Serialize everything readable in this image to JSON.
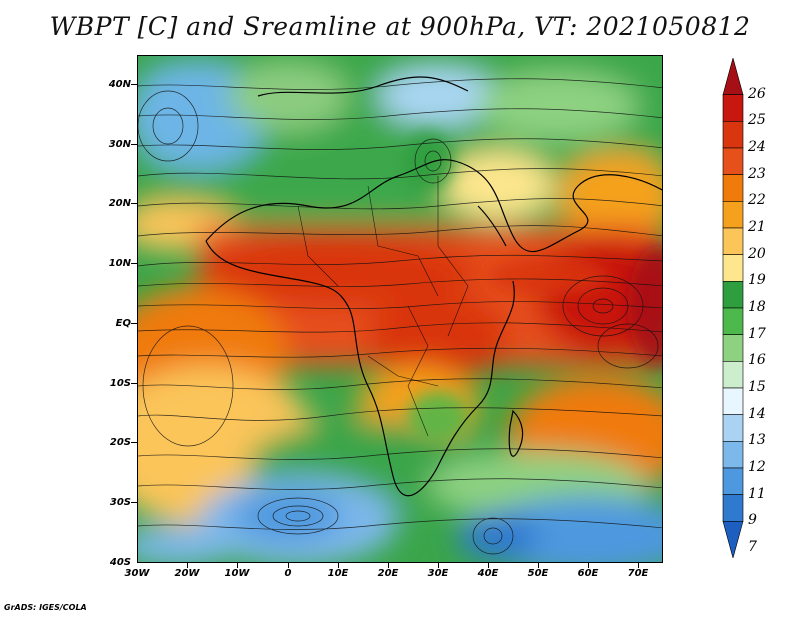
{
  "title": "WBPT [C] and Sreamline at 900hPa, VT: 2021050812",
  "credit": "GrADS: IGES/COLA",
  "map": {
    "lat_labels": [
      "40N",
      "30N",
      "20N",
      "10N",
      "EQ",
      "10S",
      "20S",
      "30S",
      "40S"
    ],
    "lon_labels": [
      "30W",
      "20W",
      "10W",
      "0",
      "10E",
      "20E",
      "30E",
      "40E",
      "50E",
      "60E",
      "70E"
    ],
    "lat_range": [
      -40,
      45
    ],
    "lon_range": [
      -30,
      75
    ]
  },
  "colorbar": {
    "labels": [
      "26",
      "25",
      "24",
      "23",
      "22",
      "21",
      "20",
      "19",
      "18",
      "17",
      "16",
      "15",
      "14",
      "13",
      "12",
      "11",
      "9",
      "7"
    ],
    "colors": [
      "#a50f15",
      "#c8170e",
      "#d9350f",
      "#e6501a",
      "#f07a0a",
      "#f5a11d",
      "#fbc55a",
      "#fde68d",
      "#2e9e3e",
      "#4db84c",
      "#8dd181",
      "#cdeecd",
      "#e8f6ff",
      "#aad3f3",
      "#7db8eb",
      "#4e98df",
      "#2f79cf",
      "#1c5fc0"
    ]
  }
}
